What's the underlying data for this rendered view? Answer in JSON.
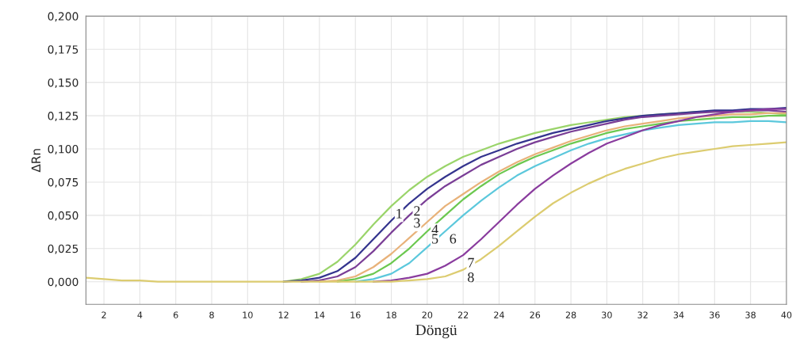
{
  "chart_data": {
    "type": "line",
    "xlabel": "Döngü",
    "ylabel": "ΔRn",
    "x": [
      1,
      2,
      3,
      4,
      5,
      6,
      7,
      8,
      9,
      10,
      11,
      12,
      13,
      14,
      15,
      16,
      17,
      18,
      19,
      20,
      21,
      22,
      23,
      24,
      25,
      26,
      27,
      28,
      29,
      30,
      31,
      32,
      33,
      34,
      35,
      36,
      37,
      38,
      39,
      40
    ],
    "series": [
      {
        "color": "#9ad46a",
        "values": [
          null,
          null,
          null,
          null,
          null,
          null,
          null,
          null,
          null,
          null,
          null,
          0,
          0.002,
          0.006,
          0.015,
          0.028,
          0.043,
          0.057,
          0.069,
          0.079,
          0.087,
          0.094,
          0.099,
          0.104,
          0.108,
          0.112,
          0.115,
          0.118,
          0.12,
          0.122,
          0.124,
          0.125,
          0.126,
          0.127,
          0.128,
          0.128,
          0.128,
          0.128,
          0.127,
          0.126
        ]
      },
      {
        "color": "#34348e",
        "values": [
          null,
          null,
          null,
          null,
          null,
          null,
          null,
          null,
          null,
          null,
          null,
          0,
          0.001,
          0.003,
          0.008,
          0.018,
          0.032,
          0.046,
          0.059,
          0.07,
          0.079,
          0.087,
          0.094,
          0.099,
          0.104,
          0.108,
          0.112,
          0.115,
          0.118,
          0.121,
          0.123,
          0.125,
          0.126,
          0.127,
          0.128,
          0.129,
          0.129,
          0.13,
          0.13,
          0.131
        ]
      },
      {
        "color": "#7a3e96",
        "values": [
          null,
          null,
          null,
          null,
          null,
          null,
          null,
          null,
          null,
          null,
          null,
          null,
          0,
          0.001,
          0.004,
          0.011,
          0.023,
          0.037,
          0.05,
          0.062,
          0.072,
          0.08,
          0.088,
          0.094,
          0.1,
          0.105,
          0.109,
          0.113,
          0.116,
          0.119,
          0.122,
          0.124,
          0.125,
          0.126,
          0.127,
          0.128,
          0.128,
          0.129,
          0.129,
          0.128
        ]
      },
      {
        "color": "#e8b27a",
        "values": [
          null,
          null,
          null,
          null,
          null,
          null,
          null,
          null,
          null,
          null,
          null,
          null,
          null,
          0,
          0.001,
          0.004,
          0.011,
          0.021,
          0.033,
          0.045,
          0.057,
          0.066,
          0.075,
          0.083,
          0.09,
          0.096,
          0.101,
          0.106,
          0.11,
          0.114,
          0.117,
          0.119,
          0.121,
          0.123,
          0.124,
          0.125,
          0.126,
          0.126,
          0.127,
          0.127
        ]
      },
      {
        "color": "#6cc850",
        "values": [
          null,
          null,
          null,
          null,
          null,
          null,
          null,
          null,
          null,
          null,
          null,
          null,
          null,
          null,
          0,
          0.002,
          0.006,
          0.014,
          0.025,
          0.038,
          0.05,
          0.062,
          0.072,
          0.081,
          0.088,
          0.094,
          0.099,
          0.104,
          0.108,
          0.112,
          0.115,
          0.117,
          0.119,
          0.121,
          0.122,
          0.123,
          0.124,
          0.124,
          0.125,
          0.125
        ]
      },
      {
        "color": "#5cc8dc",
        "values": [
          null,
          null,
          null,
          null,
          null,
          null,
          null,
          null,
          null,
          null,
          null,
          null,
          null,
          null,
          null,
          0,
          0.002,
          0.006,
          0.014,
          0.026,
          0.038,
          0.05,
          0.061,
          0.071,
          0.08,
          0.087,
          0.093,
          0.099,
          0.104,
          0.108,
          0.111,
          0.114,
          0.116,
          0.118,
          0.119,
          0.12,
          0.12,
          0.121,
          0.121,
          0.12
        ]
      },
      {
        "color": "#8a3c9e",
        "values": [
          null,
          null,
          null,
          null,
          null,
          null,
          null,
          null,
          null,
          null,
          null,
          null,
          null,
          null,
          null,
          null,
          0,
          0.001,
          0.003,
          0.006,
          0.012,
          0.02,
          0.032,
          0.045,
          0.058,
          0.07,
          0.08,
          0.089,
          0.097,
          0.104,
          0.109,
          0.114,
          0.118,
          0.121,
          0.124,
          0.126,
          0.128,
          0.129,
          0.13,
          0.13
        ]
      },
      {
        "color": "#dccc70",
        "values": [
          0.003,
          0.002,
          0.001,
          0.001,
          0,
          0,
          0,
          0,
          0,
          0,
          0,
          0,
          0,
          0,
          0,
          0,
          0,
          0,
          0.001,
          0.002,
          0.004,
          0.009,
          0.017,
          0.027,
          0.038,
          0.049,
          0.059,
          0.067,
          0.074,
          0.08,
          0.085,
          0.089,
          0.093,
          0.096,
          0.098,
          0.1,
          0.102,
          0.103,
          0.104,
          0.105
        ]
      }
    ],
    "annotations": [
      {
        "text": "1",
        "x": 18,
        "y": 0.057
      },
      {
        "text": "2",
        "x": 19,
        "y": 0.059
      },
      {
        "text": "3",
        "x": 19,
        "y": 0.05
      },
      {
        "text": "4",
        "x": 20,
        "y": 0.045
      },
      {
        "text": "5",
        "x": 20,
        "y": 0.038
      },
      {
        "text": "6",
        "x": 21,
        "y": 0.038
      },
      {
        "text": "7",
        "x": 22,
        "y": 0.02
      },
      {
        "text": "8",
        "x": 22,
        "y": 0.009
      }
    ],
    "xlim": [
      1,
      40
    ],
    "ylim": [
      -0.017,
      0.2
    ],
    "xticks": [
      2,
      4,
      6,
      8,
      10,
      12,
      14,
      16,
      18,
      20,
      22,
      24,
      26,
      28,
      30,
      32,
      34,
      36,
      38,
      40
    ],
    "yticks": [
      {
        "value": 0,
        "label": "0,000"
      },
      {
        "value": 0.025,
        "label": "0,025"
      },
      {
        "value": 0.05,
        "label": "0,050"
      },
      {
        "value": 0.075,
        "label": "0,075"
      },
      {
        "value": 0.1,
        "label": "0,100"
      },
      {
        "value": 0.125,
        "label": "0,125"
      },
      {
        "value": 0.15,
        "label": "0,150"
      },
      {
        "value": 0.175,
        "label": "0,175"
      },
      {
        "value": 0.2,
        "label": "0,200"
      }
    ],
    "grid": true,
    "legend": false
  }
}
